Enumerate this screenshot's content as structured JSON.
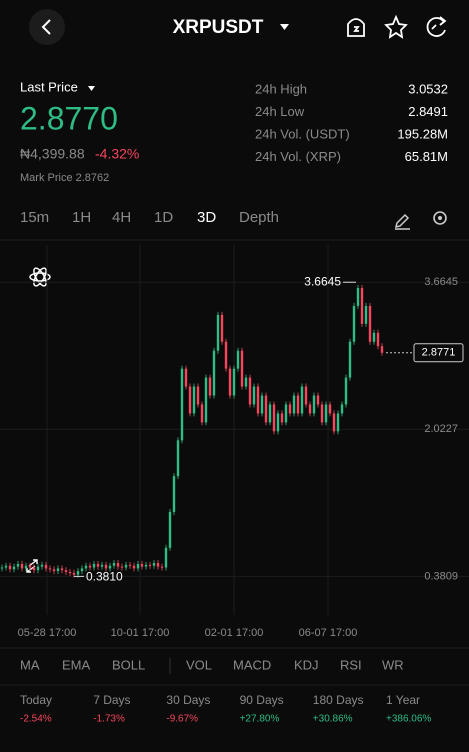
{
  "header": {
    "title": "XRPUSDT"
  },
  "price": {
    "label": "Last Price",
    "last": "2.8770",
    "fiat": "₦4,399.88",
    "change": "-4.32%",
    "mark": "Mark Price 2.8762"
  },
  "stats": [
    [
      "24h High",
      "3.0532"
    ],
    [
      "24h Low",
      "2.8491"
    ],
    [
      "24h Vol. (USDT)",
      "195.28M"
    ],
    [
      "24h Vol. (XRP)",
      "65.81M"
    ]
  ],
  "timeframes": [
    "15m",
    "1H",
    "4H",
    "1D",
    "3D",
    "Depth"
  ],
  "active_timeframe": 4,
  "chart_data": {
    "type": "candlestick",
    "closes": [
      0.48,
      0.5,
      0.46,
      0.49,
      0.52,
      0.47,
      0.5,
      0.48,
      0.45,
      0.49,
      0.51,
      0.47,
      0.46,
      0.44,
      0.47,
      0.45,
      0.43,
      0.42,
      0.4,
      0.44,
      0.47,
      0.5,
      0.48,
      0.52,
      0.49,
      0.51,
      0.47,
      0.5,
      0.53,
      0.49,
      0.48,
      0.51,
      0.5,
      0.47,
      0.52,
      0.49,
      0.51,
      0.5,
      0.53,
      0.49,
      0.48,
      0.7,
      1.1,
      1.5,
      1.9,
      2.7,
      2.5,
      2.2,
      2.5,
      2.3,
      2.1,
      2.6,
      2.4,
      2.9,
      3.3,
      3.0,
      2.7,
      2.4,
      2.7,
      2.9,
      2.5,
      2.6,
      2.3,
      2.5,
      2.2,
      2.4,
      2.1,
      2.3,
      2.0,
      2.2,
      2.1,
      2.3,
      2.2,
      2.4,
      2.2,
      2.5,
      2.3,
      2.2,
      2.4,
      2.3,
      2.1,
      2.3,
      2.2,
      2.0,
      2.2,
      2.3,
      2.6,
      3.0,
      3.4,
      3.6,
      3.2,
      3.4,
      3.0,
      3.1,
      2.95,
      2.8771
    ],
    "up_color": "#2ebd85",
    "down_color": "#f6465d",
    "ylim": [
      -0.05,
      4.08
    ],
    "yticks": [
      3.6645,
      2.0227,
      0.3809
    ],
    "xticks": [
      "05-28 17:00",
      "10-01 17:00",
      "02-01 17:00",
      "06-07 17:00"
    ],
    "high_marker": 3.6645,
    "low_marker": {
      "value": 0.381,
      "label": "0.3810"
    },
    "price_line": 2.8771
  },
  "indicators": [
    "MA",
    "EMA",
    "BOLL",
    "VOL",
    "MACD",
    "KDJ",
    "RSI",
    "WR"
  ],
  "performance": [
    {
      "period": "Today",
      "change": "-2.54%"
    },
    {
      "period": "7 Days",
      "change": "-1.73%"
    },
    {
      "period": "30 Days",
      "change": "-9.67%"
    },
    {
      "period": "90 Days",
      "change": "+27.80%"
    },
    {
      "period": "180 Days",
      "change": "+30.86%"
    },
    {
      "period": "1 Year",
      "change": "+386.06%"
    }
  ]
}
